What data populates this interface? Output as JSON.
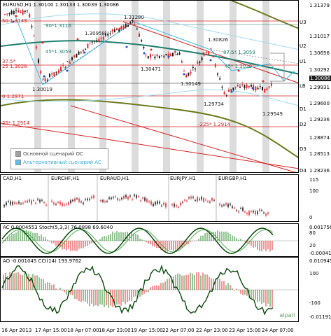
{
  "header": {
    "symbol": "EURUSD,H1",
    "ohlc": "1.30100 1.30133 1.30039 1.30086"
  },
  "main_axis_ticks": [
    "1.31379",
    "1.31017",
    "1.30656",
    "1.30292",
    "1.29931",
    "1.29600",
    "1.29236",
    "1.28874",
    "1.28513",
    "1.28236"
  ],
  "current_price": "1.30086",
  "levels": [
    {
      "label": "U3",
      "price_idx": 0
    },
    {
      "label": "U2"
    },
    {
      "label": "U1"
    },
    {
      "label": "LB"
    },
    {
      "label": "D1"
    },
    {
      "label": "D2"
    },
    {
      "label": "D3"
    },
    {
      "label": "D4"
    }
  ],
  "annotations": {
    "fib_50": "50 1.3143",
    "fib_90": "90*1.3116",
    "fib_45a": "45*1.3059",
    "fib_25": "25 1.3028",
    "fib_375": "37.5*",
    "fib_0": "0 1.2971",
    "fib_25b": "25* 1.2914",
    "fib_225": "-225* 1.2914",
    "fib_875": "87.5* 1.3059",
    "fib_45b": "45* 1.3030",
    "p1": "1.31280",
    "p2": "1.30958",
    "p3": "1.30826",
    "p4": "1.30471",
    "p5": "1.30149",
    "p6": "1.30019",
    "p7": "1.29734",
    "p8": "1.29549"
  },
  "legend": {
    "main": "Основной сценарий ОС",
    "alt": "Альтернативный сценарий АС"
  },
  "mini_charts": {
    "title_items": [
      "CAD,H1",
      "EURCHF,H1",
      "EURAUD,H1",
      "EURJPY,H1",
      "EURGBP,H1"
    ],
    "axis": [
      "115",
      "100",
      "0"
    ]
  },
  "ac_pane": {
    "title": "AC 0.0004553  Stoch(5,3,3) 76.0898 69.6040",
    "axis": [
      "0.001756",
      "80",
      "20",
      "-0.000413"
    ]
  },
  "cci_pane": {
    "title": "AO -0.001045  CCI(14) 193.9762",
    "axis": [
      "0.010945",
      "100",
      "-100",
      "-0.011913"
    ]
  },
  "time_axis": [
    "16 Apr 2013",
    "17 Apr 15:00",
    "18 Apr 07:00",
    "18 Apr 23:00",
    "19 Apr 15:00",
    "22 Apr 07:00",
    "22 Apr 23:00",
    "23 Apr 15:00",
    "24 Apr 07:00"
  ],
  "brand": "alpari",
  "colors": {
    "bull": "#1a1a1a",
    "bear": "#e8252a",
    "teal": "#1e7f6f",
    "olive": "#6b7a1a",
    "cyan": "#37b8e8",
    "red_channel": "#d92020"
  }
}
